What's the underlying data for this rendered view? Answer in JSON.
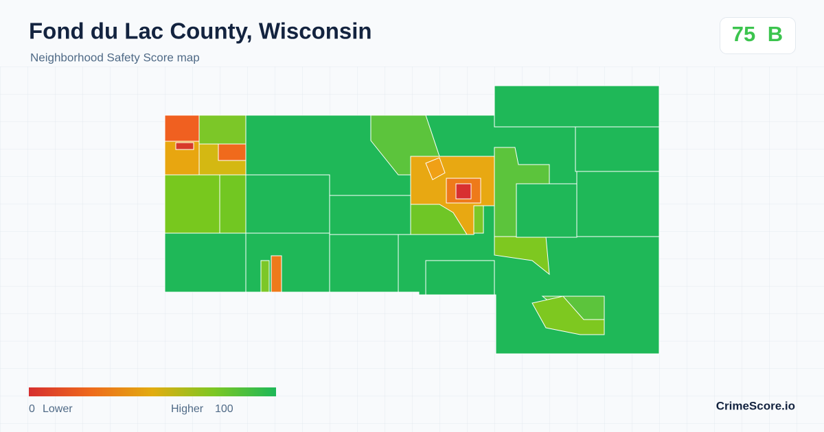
{
  "header": {
    "title": "Fond du Lac County, Wisconsin",
    "subtitle": "Neighborhood Safety Score map"
  },
  "score": {
    "value": 75,
    "grade": "B"
  },
  "legend": {
    "min": 0,
    "min_label": "Lower",
    "max_label": "Higher",
    "max": 100
  },
  "brand": "CrimeScore.io"
}
